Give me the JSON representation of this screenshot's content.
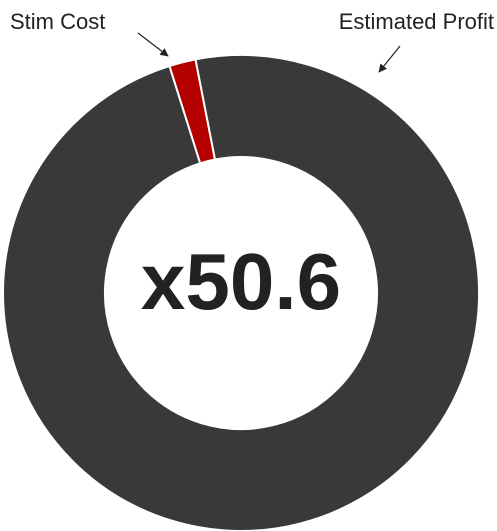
{
  "chart_data": {
    "type": "donut",
    "categories": [
      "Stim Cost",
      "Estimated Profit"
    ],
    "values": [
      1.8,
      98.2
    ],
    "colors": [
      "#b50000",
      "#393939"
    ],
    "center_label": "x50.6"
  }
}
